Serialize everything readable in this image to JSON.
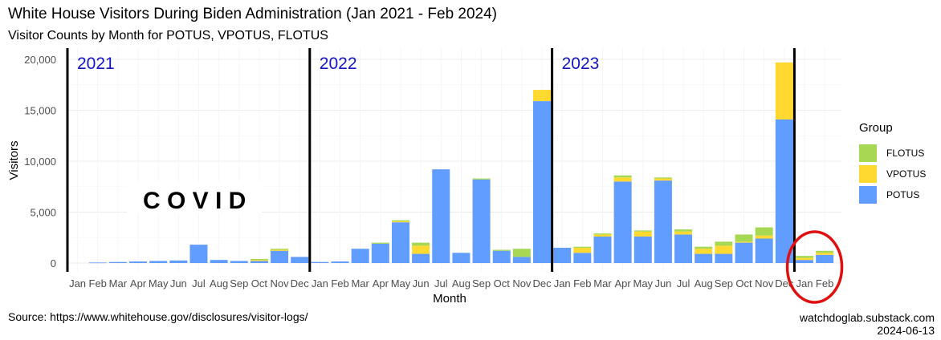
{
  "title": "White House Visitors During Biden Administration (Jan 2021 - Feb 2024)",
  "subtitle": "Visitor Counts by Month for POTUS, VPOTUS, FLOTUS",
  "source": "Source: https://www.whitehouse.gov/disclosures/visitor-logs/",
  "credit_site": "watchdoglab.substack.com",
  "credit_date": "2024-06-13",
  "colors": {
    "POTUS": "#619CFF",
    "VPOTUS": "#FFD92F",
    "FLOTUS": "#A6D854",
    "year_label": "#1414C8",
    "circle": "#E01010"
  },
  "chart_data": {
    "type": "bar",
    "stacked": true,
    "xlabel": "Month",
    "ylabel": "Visitors",
    "ylim": [
      0,
      21000
    ],
    "yticks": [
      0,
      5000,
      10000,
      15000,
      20000
    ],
    "ytick_labels": [
      "0",
      "5,000",
      "10,000",
      "15,000",
      "20,000"
    ],
    "grid": true,
    "legend_title": "Group",
    "legend": [
      "FLOTUS",
      "VPOTUS",
      "POTUS"
    ],
    "legend_position": "right",
    "categories": [
      "Jan",
      "Feb",
      "Mar",
      "Apr",
      "May",
      "Jun",
      "Jul",
      "Aug",
      "Sep",
      "Oct",
      "Nov",
      "Dec",
      "Jan",
      "Feb",
      "Mar",
      "Apr",
      "May",
      "Jun",
      "Jul",
      "Aug",
      "Sep",
      "Oct",
      "Nov",
      "Dec",
      "Jan",
      "Feb",
      "Mar",
      "Apr",
      "May",
      "Jun",
      "Jul",
      "Aug",
      "Sep",
      "Oct",
      "Nov",
      "Dec",
      "Jan",
      "Feb"
    ],
    "series": [
      {
        "name": "POTUS",
        "values": [
          0,
          50,
          100,
          150,
          200,
          250,
          1800,
          300,
          200,
          200,
          1200,
          600,
          100,
          150,
          1400,
          1900,
          4000,
          900,
          9200,
          1000,
          8200,
          1200,
          600,
          15900,
          1500,
          1000,
          2600,
          8000,
          2600,
          8100,
          2800,
          900,
          900,
          2000,
          2400,
          14100,
          300,
          800
        ]
      },
      {
        "name": "VPOTUS",
        "values": [
          0,
          0,
          0,
          0,
          0,
          0,
          0,
          0,
          0,
          100,
          100,
          0,
          0,
          0,
          0,
          0,
          100,
          800,
          0,
          0,
          0,
          0,
          0,
          1100,
          0,
          500,
          200,
          400,
          500,
          200,
          300,
          500,
          800,
          100,
          300,
          5600,
          200,
          200
        ]
      },
      {
        "name": "FLOTUS",
        "values": [
          0,
          0,
          0,
          0,
          0,
          0,
          0,
          0,
          0,
          100,
          100,
          0,
          0,
          0,
          0,
          100,
          100,
          300,
          0,
          0,
          100,
          100,
          800,
          0,
          0,
          100,
          100,
          200,
          100,
          100,
          200,
          200,
          400,
          700,
          800,
          0,
          200,
          200
        ]
      }
    ],
    "year_markers": [
      {
        "label": "2021",
        "before_index": 0
      },
      {
        "label": "2022",
        "before_index": 12
      },
      {
        "label": "2023",
        "before_index": 24
      },
      {
        "label": "",
        "before_index": 36
      }
    ],
    "annotations": [
      {
        "text": "C O V I D"
      }
    ],
    "highlight": {
      "shape": "circle",
      "indices": [
        36,
        37
      ]
    }
  }
}
